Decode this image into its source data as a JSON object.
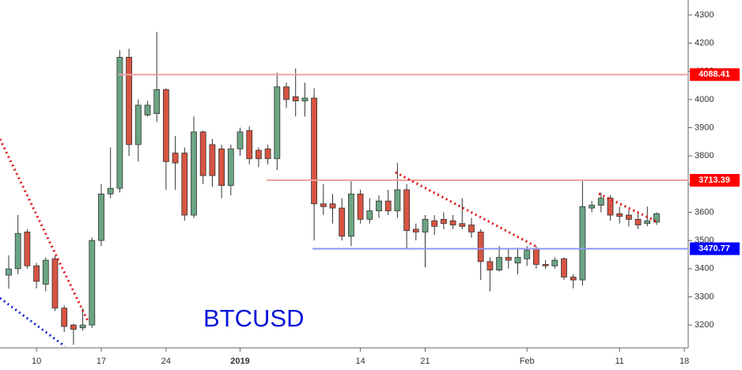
{
  "chart_data": {
    "type": "candlestick",
    "annotation": "BTCUSD",
    "categories": [
      null,
      null,
      null,
      "10",
      null,
      null,
      null,
      null,
      null,
      null,
      "17",
      null,
      null,
      null,
      null,
      null,
      null,
      "24",
      null,
      null,
      null,
      null,
      null,
      null,
      null,
      "2019",
      null,
      null,
      null,
      null,
      null,
      null,
      null,
      null,
      null,
      null,
      null,
      null,
      "14",
      null,
      null,
      null,
      null,
      null,
      null,
      "21",
      null,
      null,
      null,
      null,
      null,
      null,
      null,
      null,
      null,
      null,
      "Feb",
      null,
      null,
      null,
      null,
      null,
      null,
      null,
      null,
      null,
      "11",
      null,
      null,
      null,
      null,
      null,
      null,
      "18"
    ],
    "open": [
      3377,
      3400,
      3530,
      3410,
      3345,
      3435,
      3260,
      3200,
      3190,
      3200,
      3500,
      3665,
      3685,
      4150,
      3840,
      3945,
      3950,
      4035,
      3810,
      3810,
      3590,
      3885,
      3840,
      3825,
      3695,
      3825,
      3890,
      3820,
      3825,
      3790,
      4045,
      4010,
      3995,
      4005,
      3630,
      3630,
      3615,
      3515,
      3665,
      3575,
      3605,
      3640,
      3605,
      3680,
      3540,
      3530,
      3570,
      3575,
      3570,
      3560,
      3555,
      3530,
      3425,
      3395,
      3440,
      3420,
      3435,
      3470,
      3415,
      3410,
      3435,
      3370,
      3360,
      3615,
      3625,
      3650,
      3595,
      3590,
      3575,
      3560,
      3565,
      null,
      null,
      null
    ],
    "high": [
      3447,
      3590,
      3540,
      3420,
      3440,
      3445,
      3270,
      3205,
      3260,
      3510,
      3700,
      3830,
      4175,
      4180,
      4000,
      3995,
      4240,
      4040,
      3870,
      3830,
      3940,
      3890,
      3860,
      3840,
      3840,
      3900,
      3905,
      3830,
      3840,
      4095,
      4060,
      4110,
      4060,
      4040,
      3700,
      3665,
      3650,
      3710,
      3680,
      3650,
      3660,
      3680,
      3775,
      3700,
      3560,
      3590,
      3590,
      3600,
      3590,
      3650,
      3580,
      3540,
      3440,
      3480,
      3470,
      3475,
      3480,
      3480,
      3430,
      3440,
      3440,
      3380,
      3715,
      3640,
      3670,
      3660,
      3620,
      3610,
      3600,
      3620,
      3600,
      null,
      null,
      null
    ],
    "low": [
      3329,
      3380,
      3400,
      3330,
      3320,
      3250,
      3175,
      3130,
      3180,
      3190,
      3480,
      3650,
      3670,
      3800,
      3780,
      3940,
      3920,
      3680,
      3680,
      3570,
      3580,
      3700,
      3690,
      3650,
      3660,
      3800,
      3770,
      3760,
      3770,
      3750,
      3970,
      3940,
      3940,
      3500,
      3590,
      3560,
      3500,
      3480,
      3560,
      3560,
      3580,
      3590,
      3580,
      3470,
      3500,
      3405,
      3520,
      3540,
      3540,
      3540,
      3510,
      3360,
      3320,
      3390,
      3400,
      3380,
      3410,
      3400,
      3400,
      3400,
      3360,
      3330,
      3340,
      3600,
      3600,
      3570,
      3560,
      3550,
      3540,
      3550,
      3555,
      null,
      null,
      null
    ],
    "close": [
      3399,
      3525,
      3410,
      3355,
      3430,
      3260,
      3195,
      3185,
      3200,
      3500,
      3665,
      3685,
      4150,
      3840,
      3980,
      3980,
      4035,
      3780,
      3775,
      3590,
      3885,
      3730,
      3730,
      3695,
      3825,
      3885,
      3790,
      3790,
      3790,
      4045,
      4000,
      3995,
      4005,
      3630,
      3620,
      3615,
      3515,
      3665,
      3575,
      3605,
      3640,
      3605,
      3680,
      3535,
      3530,
      3575,
      3550,
      3560,
      3555,
      3550,
      3530,
      3425,
      3395,
      3440,
      3430,
      3440,
      3465,
      3415,
      3410,
      3430,
      3370,
      3360,
      3620,
      3625,
      3650,
      3590,
      3585,
      3575,
      3555,
      3570,
      3595,
      null,
      null,
      null
    ],
    "up_color": "#6ba583",
    "down_color": "#d75442",
    "ylim": [
      3119,
      4353
    ],
    "yticks": [
      3200,
      3300,
      3400,
      3500,
      3600,
      3700,
      3800,
      3900,
      4000,
      4100,
      4200,
      4300
    ],
    "yticklabels_axis": "right",
    "levels": [
      {
        "value": 4088.41,
        "color": "#f4a0a0",
        "label_color": "#ff0000"
      },
      {
        "value": 3713.39,
        "color": "#f4a0a0",
        "label_color": "#ff0000"
      },
      {
        "value": 3470.77,
        "color": "#8f95f5",
        "label_color": "#0000ff"
      }
    ]
  }
}
